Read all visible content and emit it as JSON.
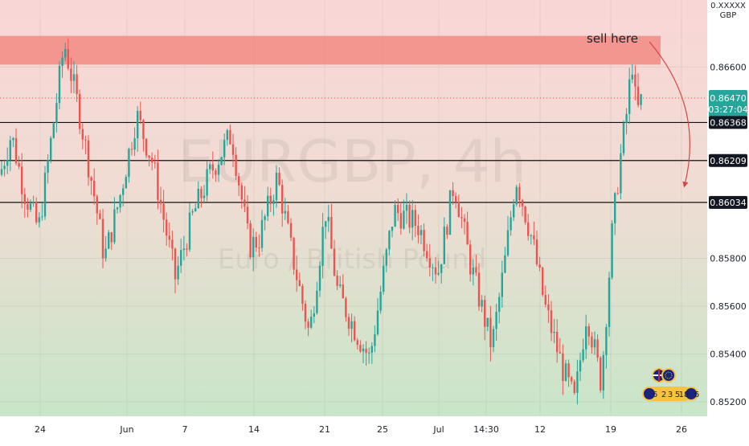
{
  "chart_data": {
    "type": "candlestick",
    "symbol_watermark": "EURGBP, 4h",
    "description_watermark": "Euro / British Pound",
    "currency_label_top": "0.XXXXX",
    "currency_label": "GBP",
    "ylim": [
      0.8514,
      0.8688
    ],
    "y_ticks": [
      0.866,
      0.858,
      0.856,
      0.854,
      0.852
    ],
    "y_tick_labels": [
      "0.86600",
      "0.85800",
      "0.85600",
      "0.85400",
      "0.85200"
    ],
    "x_ticks": [
      "24",
      "Jun",
      "7",
      "14",
      "21",
      "25",
      "Jul",
      "14:30",
      "12",
      "19",
      "26"
    ],
    "current_price": {
      "value": 0.8647,
      "label": "0.86470",
      "countdown": "03:27:04",
      "color": "#26a69a"
    },
    "levels": [
      {
        "value": 0.86368,
        "label": "0.86368"
      },
      {
        "value": 0.86209,
        "label": "0.86209"
      },
      {
        "value": 0.86034,
        "label": "0.86034"
      }
    ],
    "sell_zone": {
      "from": 0.8661,
      "to": 0.8673,
      "color": "#f28b82"
    },
    "annotation": "sell here",
    "up_color": "#26a69a",
    "down_color": "#ef5350",
    "segments": [
      [
        0,
        0.8615
      ],
      [
        14,
        0.8632
      ],
      [
        30,
        0.8608
      ],
      [
        48,
        0.8592
      ],
      [
        68,
        0.864
      ],
      [
        80,
        0.867
      ],
      [
        98,
        0.8642
      ],
      [
        118,
        0.8605
      ],
      [
        130,
        0.858
      ],
      [
        148,
        0.8604
      ],
      [
        170,
        0.864
      ],
      [
        190,
        0.862
      ],
      [
        218,
        0.8572
      ],
      [
        240,
        0.8598
      ],
      [
        262,
        0.8616
      ],
      [
        288,
        0.8632
      ],
      [
        310,
        0.8585
      ],
      [
        322,
        0.8588
      ],
      [
        345,
        0.8614
      ],
      [
        362,
        0.8584
      ],
      [
        385,
        0.8548
      ],
      [
        405,
        0.86
      ],
      [
        420,
        0.8566
      ],
      [
        445,
        0.8548
      ],
      [
        460,
        0.8538
      ],
      [
        490,
        0.86
      ],
      [
        520,
        0.8594
      ],
      [
        545,
        0.8574
      ],
      [
        565,
        0.8612
      ],
      [
        585,
        0.8578
      ],
      [
        612,
        0.8543
      ],
      [
        628,
        0.8578
      ],
      [
        642,
        0.8614
      ],
      [
        662,
        0.8588
      ],
      [
        678,
        0.856
      ],
      [
        700,
        0.8534
      ],
      [
        715,
        0.852
      ],
      [
        730,
        0.8558
      ],
      [
        748,
        0.8528
      ],
      [
        762,
        0.8592
      ],
      [
        772,
        0.8622
      ],
      [
        782,
        0.8646
      ],
      [
        786,
        0.8665
      ],
      [
        792,
        0.864
      ],
      [
        800,
        0.8648
      ]
    ],
    "events": {
      "labels": [
        "6",
        "2",
        "3",
        "5",
        "18",
        "6"
      ]
    }
  }
}
